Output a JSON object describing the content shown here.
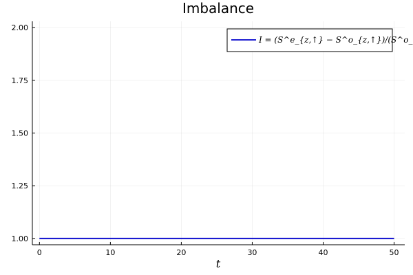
{
  "chart_data": {
    "type": "line",
    "title": "Imbalance",
    "xlabel": "t",
    "ylabel": "",
    "xlim": [
      -1,
      51.5
    ],
    "ylim": [
      0.97,
      2.03
    ],
    "xticks": [
      0,
      10,
      20,
      30,
      40,
      50
    ],
    "xtick_labels": [
      "0",
      "10",
      "20",
      "30",
      "40",
      "50"
    ],
    "yticks": [
      1.0,
      1.25,
      1.5,
      1.75,
      2.0
    ],
    "ytick_labels": [
      "1.00",
      "1.25",
      "1.50",
      "1.75",
      "2.00"
    ],
    "grid": true,
    "legend_position": "top-right",
    "series": [
      {
        "name": "I = (S^e_{z,↑} − S^o_{z,↑})/(S^o_{z,↑} + S^e_{z,↑})",
        "color": "#0000cc",
        "x": [
          0,
          10,
          20,
          30,
          40,
          50
        ],
        "y": [
          1.0,
          1.0,
          1.0,
          1.0,
          1.0,
          1.0
        ]
      }
    ]
  }
}
